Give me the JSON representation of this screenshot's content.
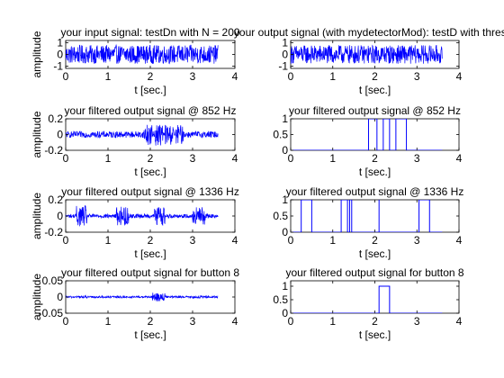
{
  "colors": {
    "signal": "#0000ff",
    "axes": "#000000",
    "background": "#ffffff"
  },
  "chart_data": [
    {
      "id": "ax11",
      "type": "line",
      "title": "your input signal: testDn with N = 200",
      "xlabel": "t [sec.]",
      "ylabel": "amplitude",
      "xlim": [
        0,
        4
      ],
      "ylim": [
        -1.2,
        1.2
      ],
      "xticks": [
        0,
        1,
        2,
        3,
        4
      ],
      "xtick_labels": [
        "0",
        "1",
        "2",
        "3",
        "4"
      ],
      "yticks": [
        -1,
        0,
        1
      ],
      "ytick_labels": [
        "-1",
        "0",
        "1"
      ],
      "signal": {
        "kind": "noise",
        "t_start": 0,
        "t_end": 3.6,
        "base_amplitude": 0.8,
        "bursts": []
      }
    },
    {
      "id": "ax12",
      "type": "line",
      "title": "your output signal (with mydetectorMod): testD with thres =",
      "xlabel": "t [sec.]",
      "ylabel": "",
      "xlim": [
        0,
        4
      ],
      "ylim": [
        -1.2,
        1.2
      ],
      "xticks": [
        0,
        1,
        2,
        3,
        4
      ],
      "xtick_labels": [
        "0",
        "1",
        "2",
        "3",
        "4"
      ],
      "yticks": [
        -1,
        0,
        1
      ],
      "ytick_labels": [
        "-1",
        "0",
        "1"
      ],
      "signal": {
        "kind": "noise",
        "t_start": 0,
        "t_end": 3.6,
        "base_amplitude": 0.8,
        "bursts": []
      }
    },
    {
      "id": "ax21",
      "type": "line",
      "title": "your filtered output signal @ 852 Hz",
      "xlabel": "t [sec.]",
      "ylabel": "amplitude",
      "xlim": [
        0,
        4
      ],
      "ylim": [
        -0.2,
        0.2
      ],
      "xticks": [
        0,
        1,
        2,
        3,
        4
      ],
      "xtick_labels": [
        "0",
        "1",
        "2",
        "3",
        "4"
      ],
      "yticks": [
        -0.2,
        0,
        0.2
      ],
      "ytick_labels": [
        "-0.2",
        "0",
        "0.2"
      ],
      "signal": {
        "kind": "noise",
        "t_start": 0,
        "t_end": 3.6,
        "base_amplitude": 0.04,
        "bursts": [
          [
            1.85,
            2.05,
            0.14
          ],
          [
            2.1,
            2.3,
            0.14
          ],
          [
            2.35,
            2.55,
            0.13
          ],
          [
            2.6,
            2.8,
            0.12
          ]
        ]
      }
    },
    {
      "id": "ax22",
      "type": "line",
      "title": "your filtered output signal @ 852 Hz",
      "xlabel": "t [sec.]",
      "ylabel": "",
      "xlim": [
        0,
        4
      ],
      "ylim": [
        0,
        1
      ],
      "xticks": [
        0,
        1,
        2,
        3,
        4
      ],
      "xtick_labels": [
        "0",
        "1",
        "2",
        "3",
        "4"
      ],
      "yticks": [
        0,
        0.5,
        1
      ],
      "ytick_labels": [
        "0",
        "0.5",
        "1"
      ],
      "pulses": [
        [
          1.85,
          2.05
        ],
        [
          2.2,
          2.35
        ],
        [
          2.5,
          2.75
        ]
      ]
    },
    {
      "id": "ax31",
      "type": "line",
      "title": "your filtered output signal @ 1336 Hz",
      "xlabel": "t [sec.]",
      "ylabel": "amplitude",
      "xlim": [
        0,
        4
      ],
      "ylim": [
        -0.2,
        0.2
      ],
      "xticks": [
        0,
        1,
        2,
        3,
        4
      ],
      "xtick_labels": [
        "0",
        "1",
        "2",
        "3",
        "4"
      ],
      "yticks": [
        -0.2,
        0,
        0.2
      ],
      "ytick_labels": [
        "-0.2",
        "0",
        "0.2"
      ],
      "signal": {
        "kind": "noise",
        "t_start": 0,
        "t_end": 3.6,
        "base_amplitude": 0.025,
        "bursts": [
          [
            0.25,
            0.5,
            0.13
          ],
          [
            1.2,
            1.5,
            0.12
          ],
          [
            2.1,
            2.35,
            0.12
          ],
          [
            3.0,
            3.3,
            0.11
          ]
        ]
      }
    },
    {
      "id": "ax32",
      "type": "line",
      "title": "your filtered output signal @ 1336 Hz",
      "xlabel": "t [sec.]",
      "ylabel": "",
      "xlim": [
        0,
        4
      ],
      "ylim": [
        0,
        1
      ],
      "xticks": [
        0,
        1,
        2,
        3,
        4
      ],
      "xtick_labels": [
        "0",
        "1",
        "2",
        "3",
        "4"
      ],
      "yticks": [
        0,
        0.5,
        1
      ],
      "ytick_labels": [
        "0",
        "0.5",
        "1"
      ],
      "pulses": [
        [
          0.25,
          0.5
        ],
        [
          1.2,
          1.35
        ],
        [
          1.4,
          1.45
        ],
        [
          2.1,
          2.1
        ],
        [
          3.05,
          3.3
        ]
      ]
    },
    {
      "id": "ax41",
      "type": "line",
      "title": "your filtered output signal for button 8",
      "xlabel": "t [sec.]",
      "ylabel": "amplitude",
      "xlim": [
        0,
        4
      ],
      "ylim": [
        -0.05,
        0.05
      ],
      "xticks": [
        0,
        1,
        2,
        3,
        4
      ],
      "xtick_labels": [
        "0",
        "1",
        "2",
        "3",
        "4"
      ],
      "yticks": [
        -0.05,
        0,
        0.05
      ],
      "ytick_labels": [
        "-0.05",
        "0",
        "0.05"
      ],
      "signal": {
        "kind": "noise",
        "t_start": 0,
        "t_end": 3.6,
        "base_amplitude": 0.003,
        "bursts": [
          [
            2.05,
            2.35,
            0.015
          ],
          [
            0.3,
            0.5,
            0.004
          ],
          [
            1.2,
            1.45,
            0.004
          ],
          [
            3.0,
            3.3,
            0.004
          ]
        ]
      }
    },
    {
      "id": "ax42",
      "type": "line",
      "title": "your filtered output signal for button 8",
      "xlabel": "t [sec.]",
      "ylabel": "",
      "xlim": [
        0,
        4
      ],
      "ylim": [
        0,
        1.2
      ],
      "xticks": [
        0,
        1,
        2,
        3,
        4
      ],
      "xtick_labels": [
        "0",
        "1",
        "2",
        "3",
        "4"
      ],
      "yticks": [
        0,
        0.5,
        1
      ],
      "ytick_labels": [
        "0",
        "0.5",
        "1"
      ],
      "pulses": [
        [
          2.1,
          2.35
        ]
      ]
    }
  ]
}
